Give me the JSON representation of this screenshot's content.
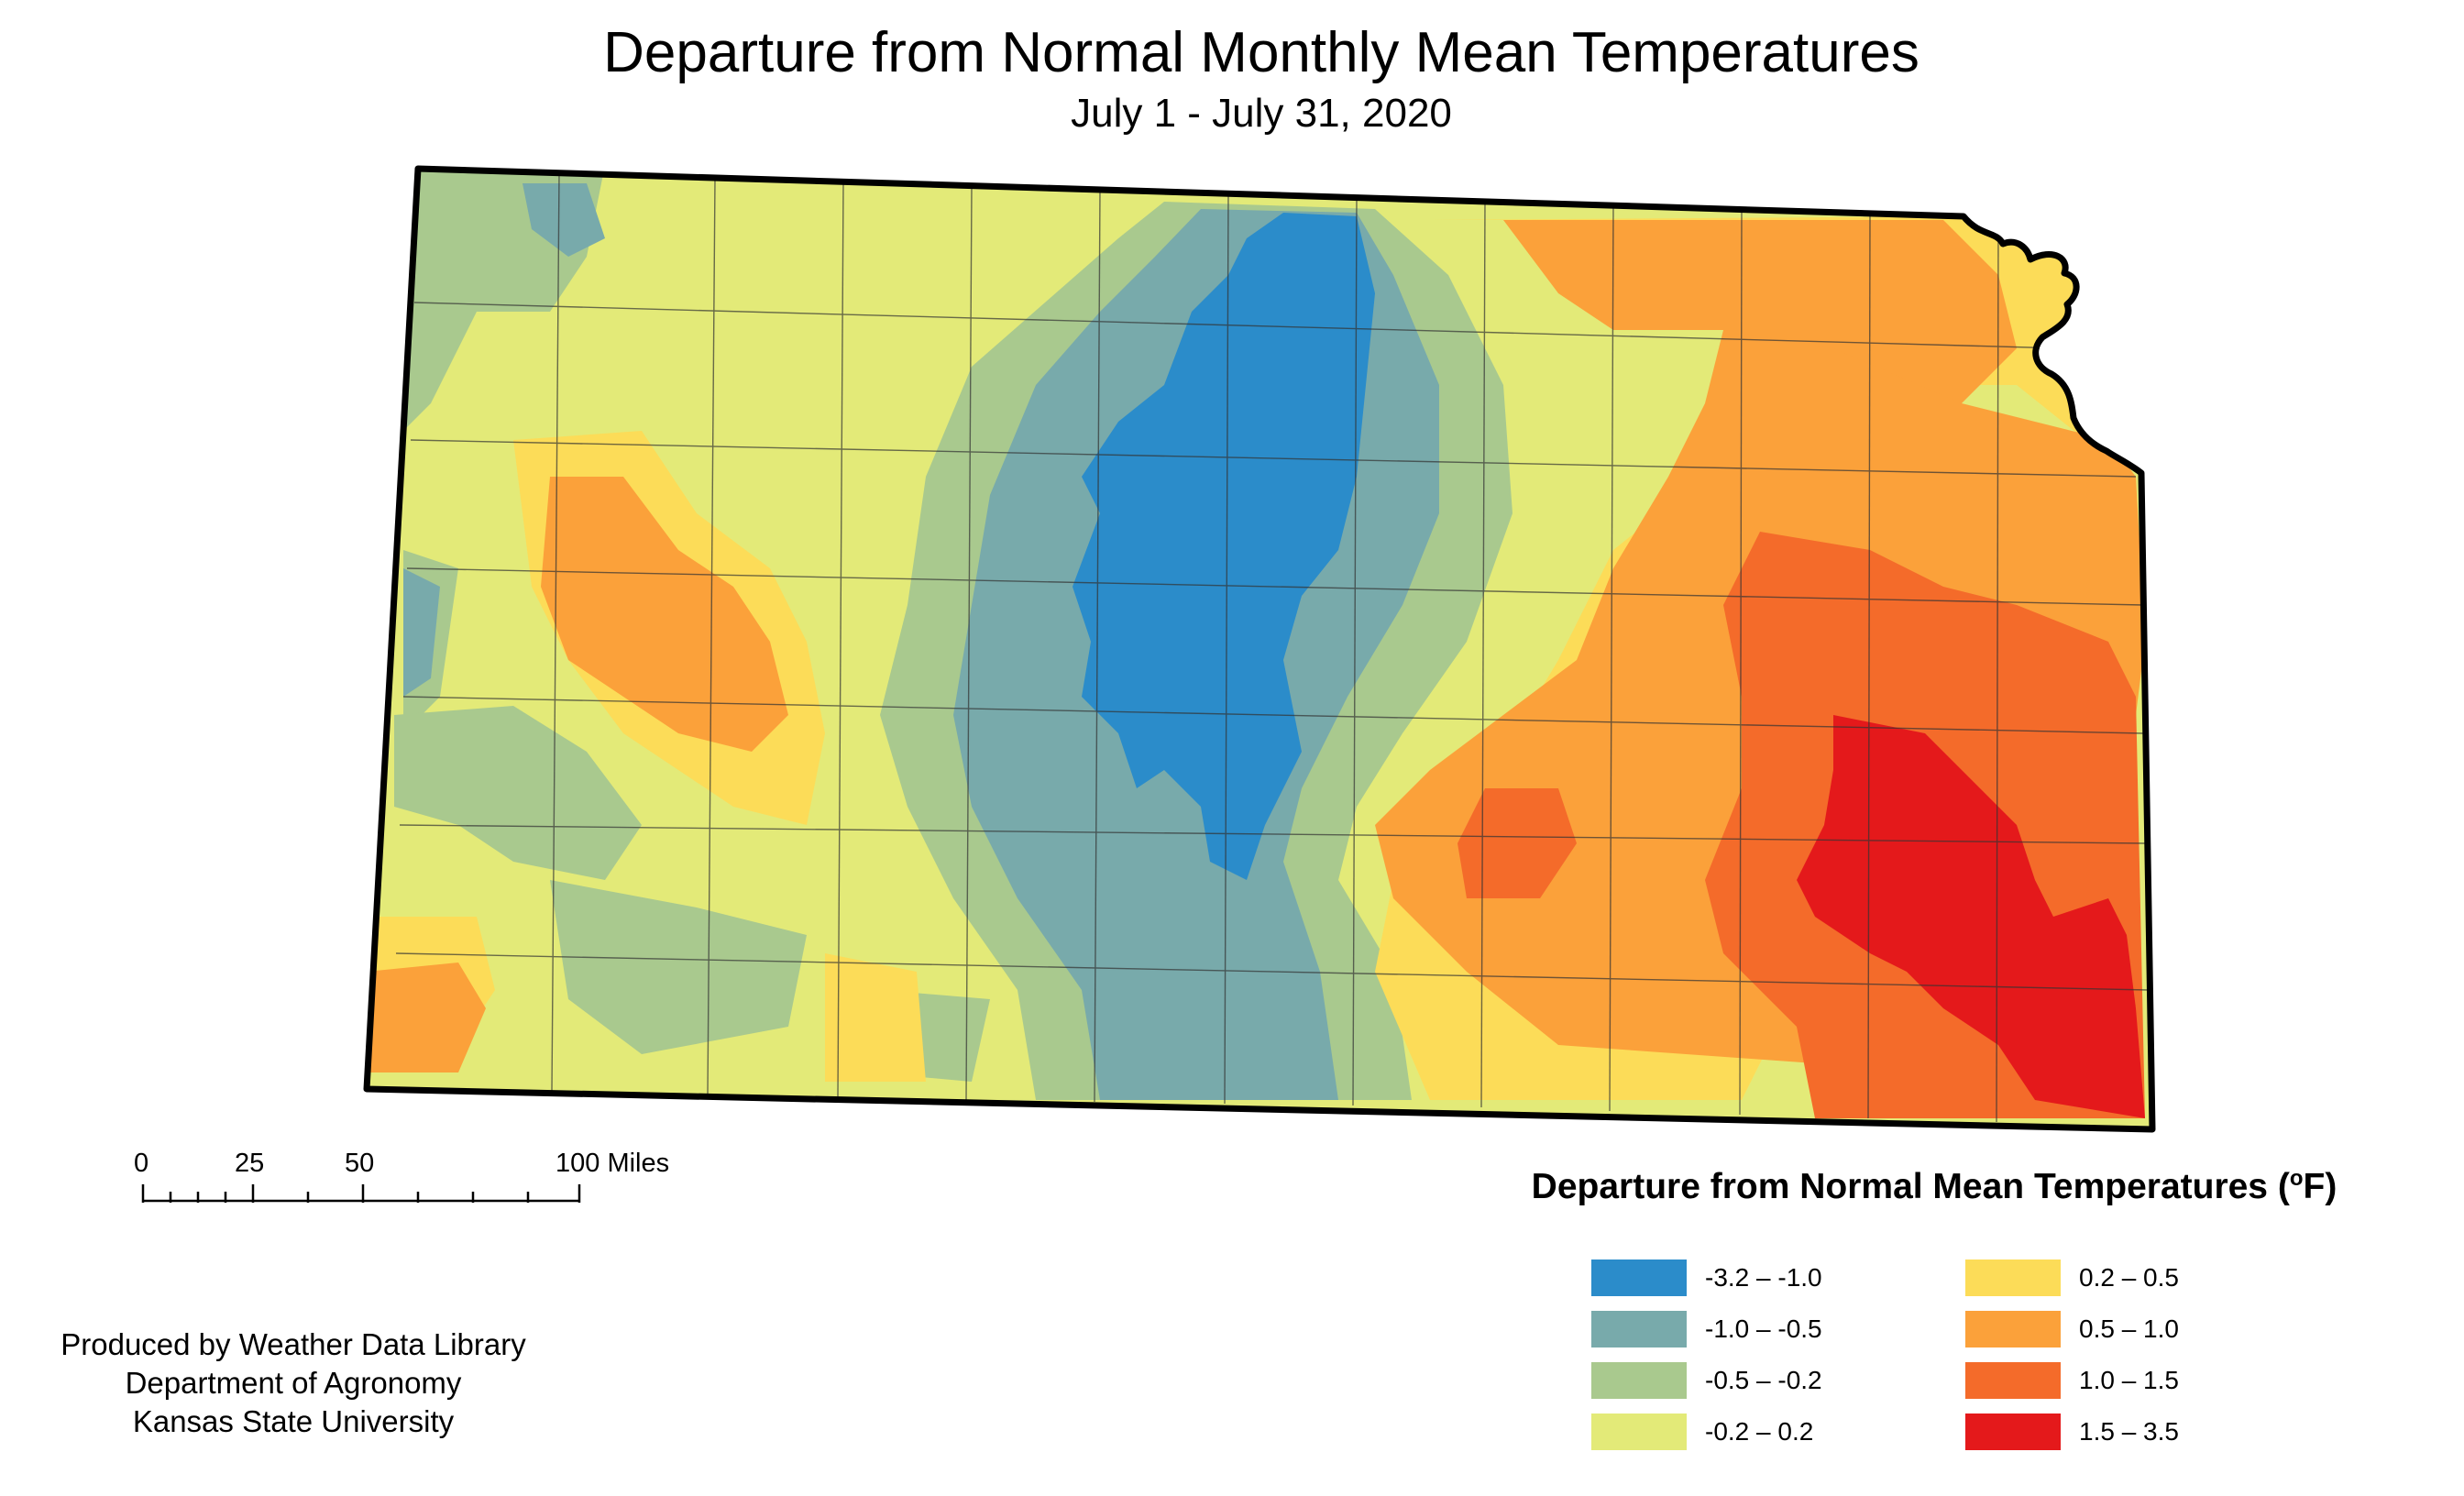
{
  "title": "Departure from Normal Monthly Mean Temperatures",
  "subtitle": "July 1 - July 31, 2020",
  "map": {
    "region": "Kansas",
    "regions": [
      {
        "name": "coldest-core",
        "range_class": 0,
        "color": "#2b8cca"
      },
      {
        "name": "cool-band",
        "range_class": 1,
        "color": "#78aaab"
      },
      {
        "name": "slight-cool",
        "range_class": 2,
        "color": "#a9c98e"
      },
      {
        "name": "near-normal",
        "range_class": 3,
        "color": "#e3ea78"
      },
      {
        "name": "slight-warm",
        "range_class": 4,
        "color": "#fcdc58"
      },
      {
        "name": "warm",
        "range_class": 5,
        "color": "#fba13a"
      },
      {
        "name": "hot",
        "range_class": 6,
        "color": "#f46b2a"
      },
      {
        "name": "hottest",
        "range_class": 7,
        "color": "#e4191b"
      }
    ]
  },
  "legend": {
    "title": "Departure from Normal Mean Temperatures (",
    "unit_sup": "o",
    "unit": "F)",
    "items": [
      {
        "label": "-3.2 – -1.0",
        "color": "#2b8cca"
      },
      {
        "label": "-1.0 – -0.5",
        "color": "#78aaab"
      },
      {
        "label": "-0.5 – -0.2",
        "color": "#a9c98e"
      },
      {
        "label": "-0.2 – 0.2",
        "color": "#e3ea78"
      },
      {
        "label": "0.2 – 0.5",
        "color": "#fcdc58"
      },
      {
        "label": "0.5 – 1.0",
        "color": "#fba13a"
      },
      {
        "label": "1.0 – 1.5",
        "color": "#f46b2a"
      },
      {
        "label": "1.5 – 3.5",
        "color": "#e4191b"
      }
    ]
  },
  "scale_bar": {
    "labels": [
      "0",
      "25",
      "50",
      "100 Miles"
    ]
  },
  "credits": [
    "Produced by Weather Data Library",
    "Department of Agronomy",
    "Kansas State University"
  ]
}
